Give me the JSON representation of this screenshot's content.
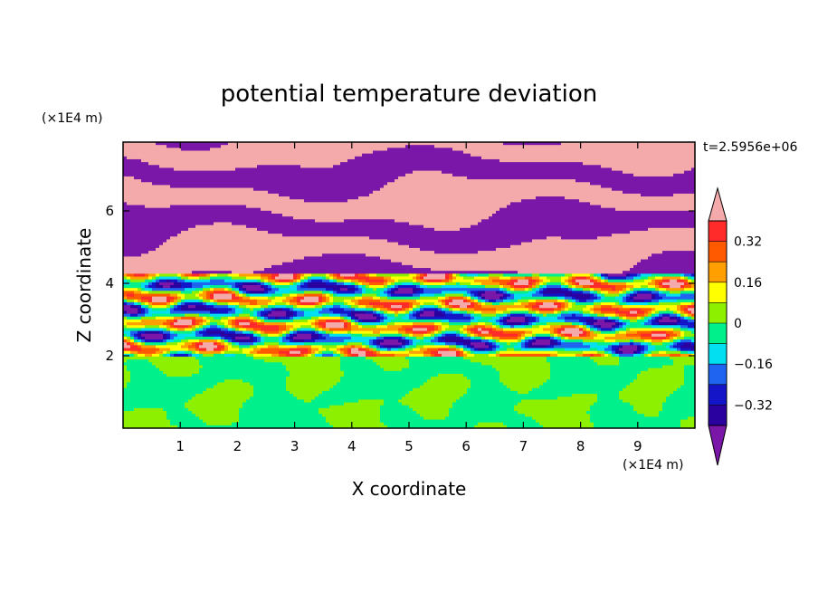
{
  "chart_data": {
    "type": "heatmap",
    "title": "potential temperature deviation",
    "xlabel": "X coordinate",
    "ylabel": "Z coordinate",
    "x_unit": "(×1E4 m)",
    "y_unit": "(×1E4 m)",
    "time_label": "t=2.5956e+06",
    "xlim": [
      0,
      10
    ],
    "ylim": [
      0,
      7.9
    ],
    "x_ticks": [
      1,
      2,
      3,
      4,
      5,
      6,
      7,
      8,
      9
    ],
    "y_ticks": [
      2,
      4,
      6
    ],
    "colorbar": {
      "levels": [
        -0.4,
        -0.32,
        -0.24,
        -0.16,
        -0.08,
        0,
        0.08,
        0.16,
        0.24,
        0.32,
        0.4
      ],
      "tick_labels": [
        "0.32",
        "0.16",
        "0",
        "−0.16",
        "−0.32"
      ],
      "tick_values": [
        0.32,
        0.16,
        0,
        -0.16,
        -0.32
      ],
      "colors": [
        "#7a16a8",
        "#2a009e",
        "#1414c8",
        "#1e64f0",
        "#00e0f0",
        "#00f08c",
        "#8cf000",
        "#ffff00",
        "#ffa000",
        "#ff5a00",
        "#ff2a2a",
        "#f4aaaa"
      ],
      "extend": "both"
    },
    "regions": [
      {
        "description": "upper stably stratified layer, alternating bands",
        "z_range": [
          4.3,
          7.9
        ],
        "dominant_values": [
          -0.45,
          0.45
        ]
      },
      {
        "description": "turbulent transition layer with mixed values",
        "z_range": [
          2.0,
          4.3
        ],
        "value_range": [
          -0.4,
          0.4
        ]
      },
      {
        "description": "lower convective layer",
        "z_range": [
          0,
          2.0
        ],
        "dominant_values": [
          -0.04,
          0.04
        ]
      }
    ]
  }
}
